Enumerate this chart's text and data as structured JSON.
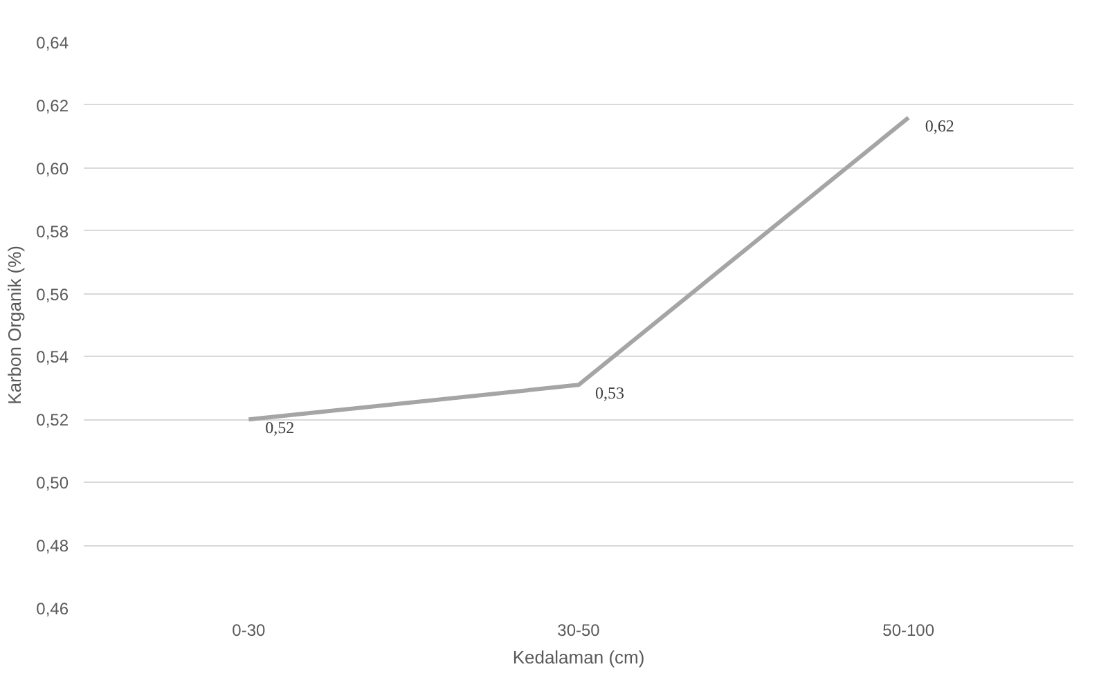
{
  "chart_data": {
    "type": "line",
    "xlabel": "Kedalaman (cm)",
    "ylabel": "Karbon Organik (%)",
    "categories": [
      "0-30",
      "30-50",
      "50-100"
    ],
    "series": [
      {
        "color": "#a5a5a5",
        "values": [
          0.52,
          0.531,
          0.616
        ],
        "value_labels": [
          "0,52",
          "0,53",
          "0,62"
        ]
      }
    ],
    "ylim": [
      0.46,
      0.64
    ],
    "yticks": [
      {
        "value": 0.46,
        "label": "0,46"
      },
      {
        "value": 0.48,
        "label": "0,48"
      },
      {
        "value": 0.5,
        "label": "0,50"
      },
      {
        "value": 0.52,
        "label": "0,52"
      },
      {
        "value": 0.54,
        "label": "0,54"
      },
      {
        "value": 0.56,
        "label": "0,56"
      },
      {
        "value": 0.58,
        "label": "0,58"
      },
      {
        "value": 0.6,
        "label": "0,60"
      },
      {
        "value": 0.62,
        "label": "0,62"
      },
      {
        "value": 0.64,
        "label": "0,64"
      }
    ],
    "grid": "y",
    "line_style": "solid",
    "marker": "none"
  }
}
